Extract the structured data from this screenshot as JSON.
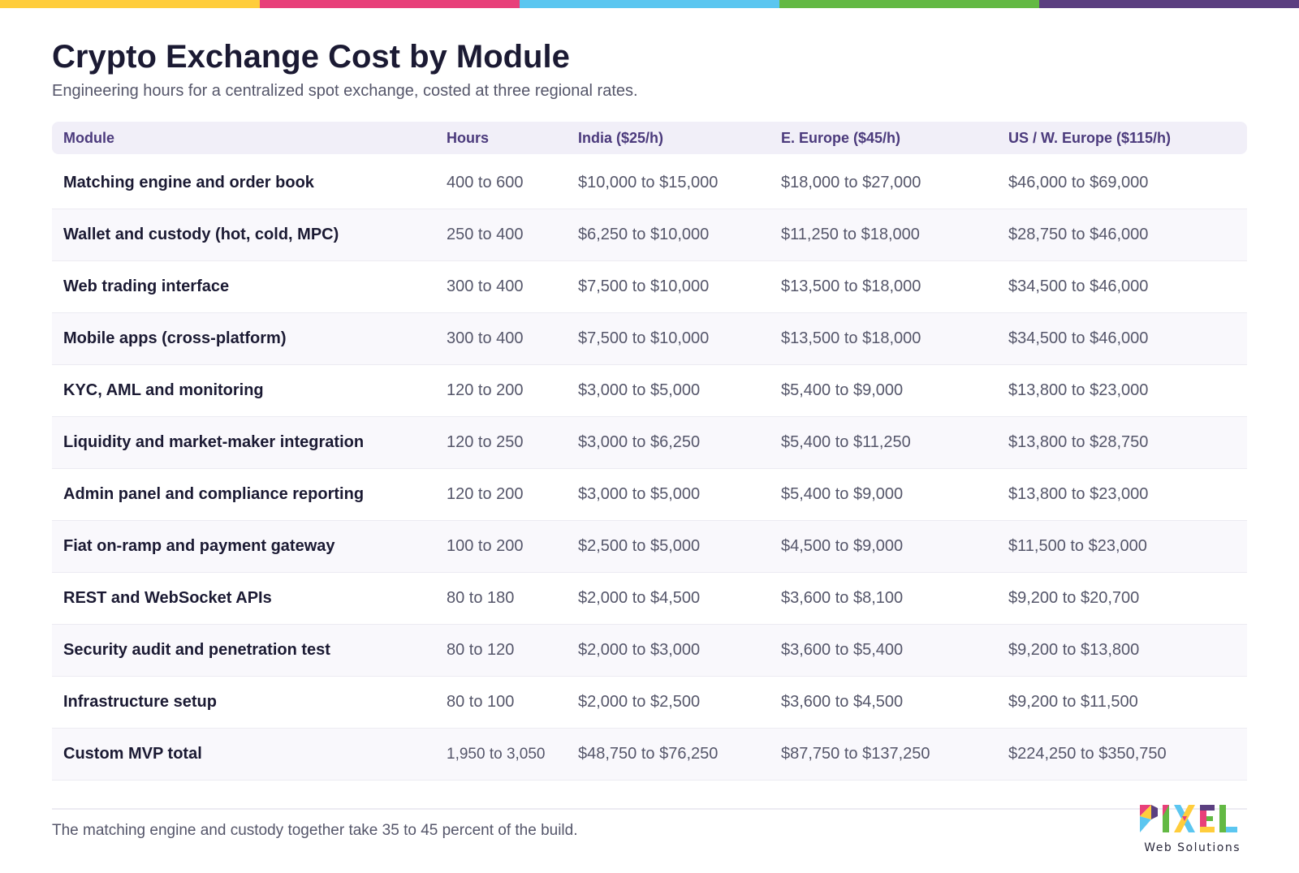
{
  "colors": {
    "bar": [
      "#ffcd3c",
      "#e8407a",
      "#5bc6f0",
      "#63b944",
      "#5b3f80"
    ],
    "header_text": "#4b3a7c",
    "header_bg": "#f1eff8",
    "title": "#1b1a33"
  },
  "title": "Crypto Exchange Cost by Module",
  "subtitle": "Engineering hours for a centralized spot exchange, costed at three regional rates.",
  "table": {
    "headers": [
      "Module",
      "Hours",
      "India ($25/h)",
      "E. Europe ($45/h)",
      "US / W. Europe ($115/h)"
    ],
    "rows": [
      [
        "Matching engine and order book",
        "400 to 600",
        "$10,000 to $15,000",
        "$18,000 to $27,000",
        "$46,000 to $69,000"
      ],
      [
        "Wallet and custody (hot, cold, MPC)",
        "250 to 400",
        "$6,250 to $10,000",
        "$11,250 to $18,000",
        "$28,750 to $46,000"
      ],
      [
        "Web trading interface",
        "300 to 400",
        "$7,500 to $10,000",
        "$13,500 to $18,000",
        "$34,500 to $46,000"
      ],
      [
        "Mobile apps (cross-platform)",
        "300 to 400",
        "$7,500 to $10,000",
        "$13,500 to $18,000",
        "$34,500 to $46,000"
      ],
      [
        "KYC, AML and monitoring",
        "120 to 200",
        "$3,000 to $5,000",
        "$5,400 to $9,000",
        "$13,800 to $23,000"
      ],
      [
        "Liquidity and market-maker integration",
        "120 to 250",
        "$3,000 to $6,250",
        "$5,400 to $11,250",
        "$13,800 to $28,750"
      ],
      [
        "Admin panel and compliance reporting",
        "120 to 200",
        "$3,000 to $5,000",
        "$5,400 to $9,000",
        "$13,800 to $23,000"
      ],
      [
        "Fiat on-ramp and payment gateway",
        "100 to 200",
        "$2,500 to $5,000",
        "$4,500 to $9,000",
        "$11,500 to $23,000"
      ],
      [
        "REST and WebSocket APIs",
        "80 to 180",
        "$2,000 to $4,500",
        "$3,600 to $8,100",
        "$9,200 to $20,700"
      ],
      [
        "Security audit and penetration test",
        "80 to 120",
        "$2,000 to $3,000",
        "$3,600 to $5,400",
        "$9,200 to $13,800"
      ],
      [
        "Infrastructure setup",
        "80 to 100",
        "$2,000 to $2,500",
        "$3,600 to $4,500",
        "$9,200 to $11,500"
      ],
      [
        "Custom MVP total",
        "1,950 to 3,050",
        "$48,750 to $76,250",
        "$87,750 to $137,250",
        "$224,250 to $350,750"
      ]
    ]
  },
  "footnote": "The matching engine and custody together take 35 to 45 percent of the build.",
  "logo": {
    "word": "PIXEL",
    "tagline": "Web Solutions"
  }
}
